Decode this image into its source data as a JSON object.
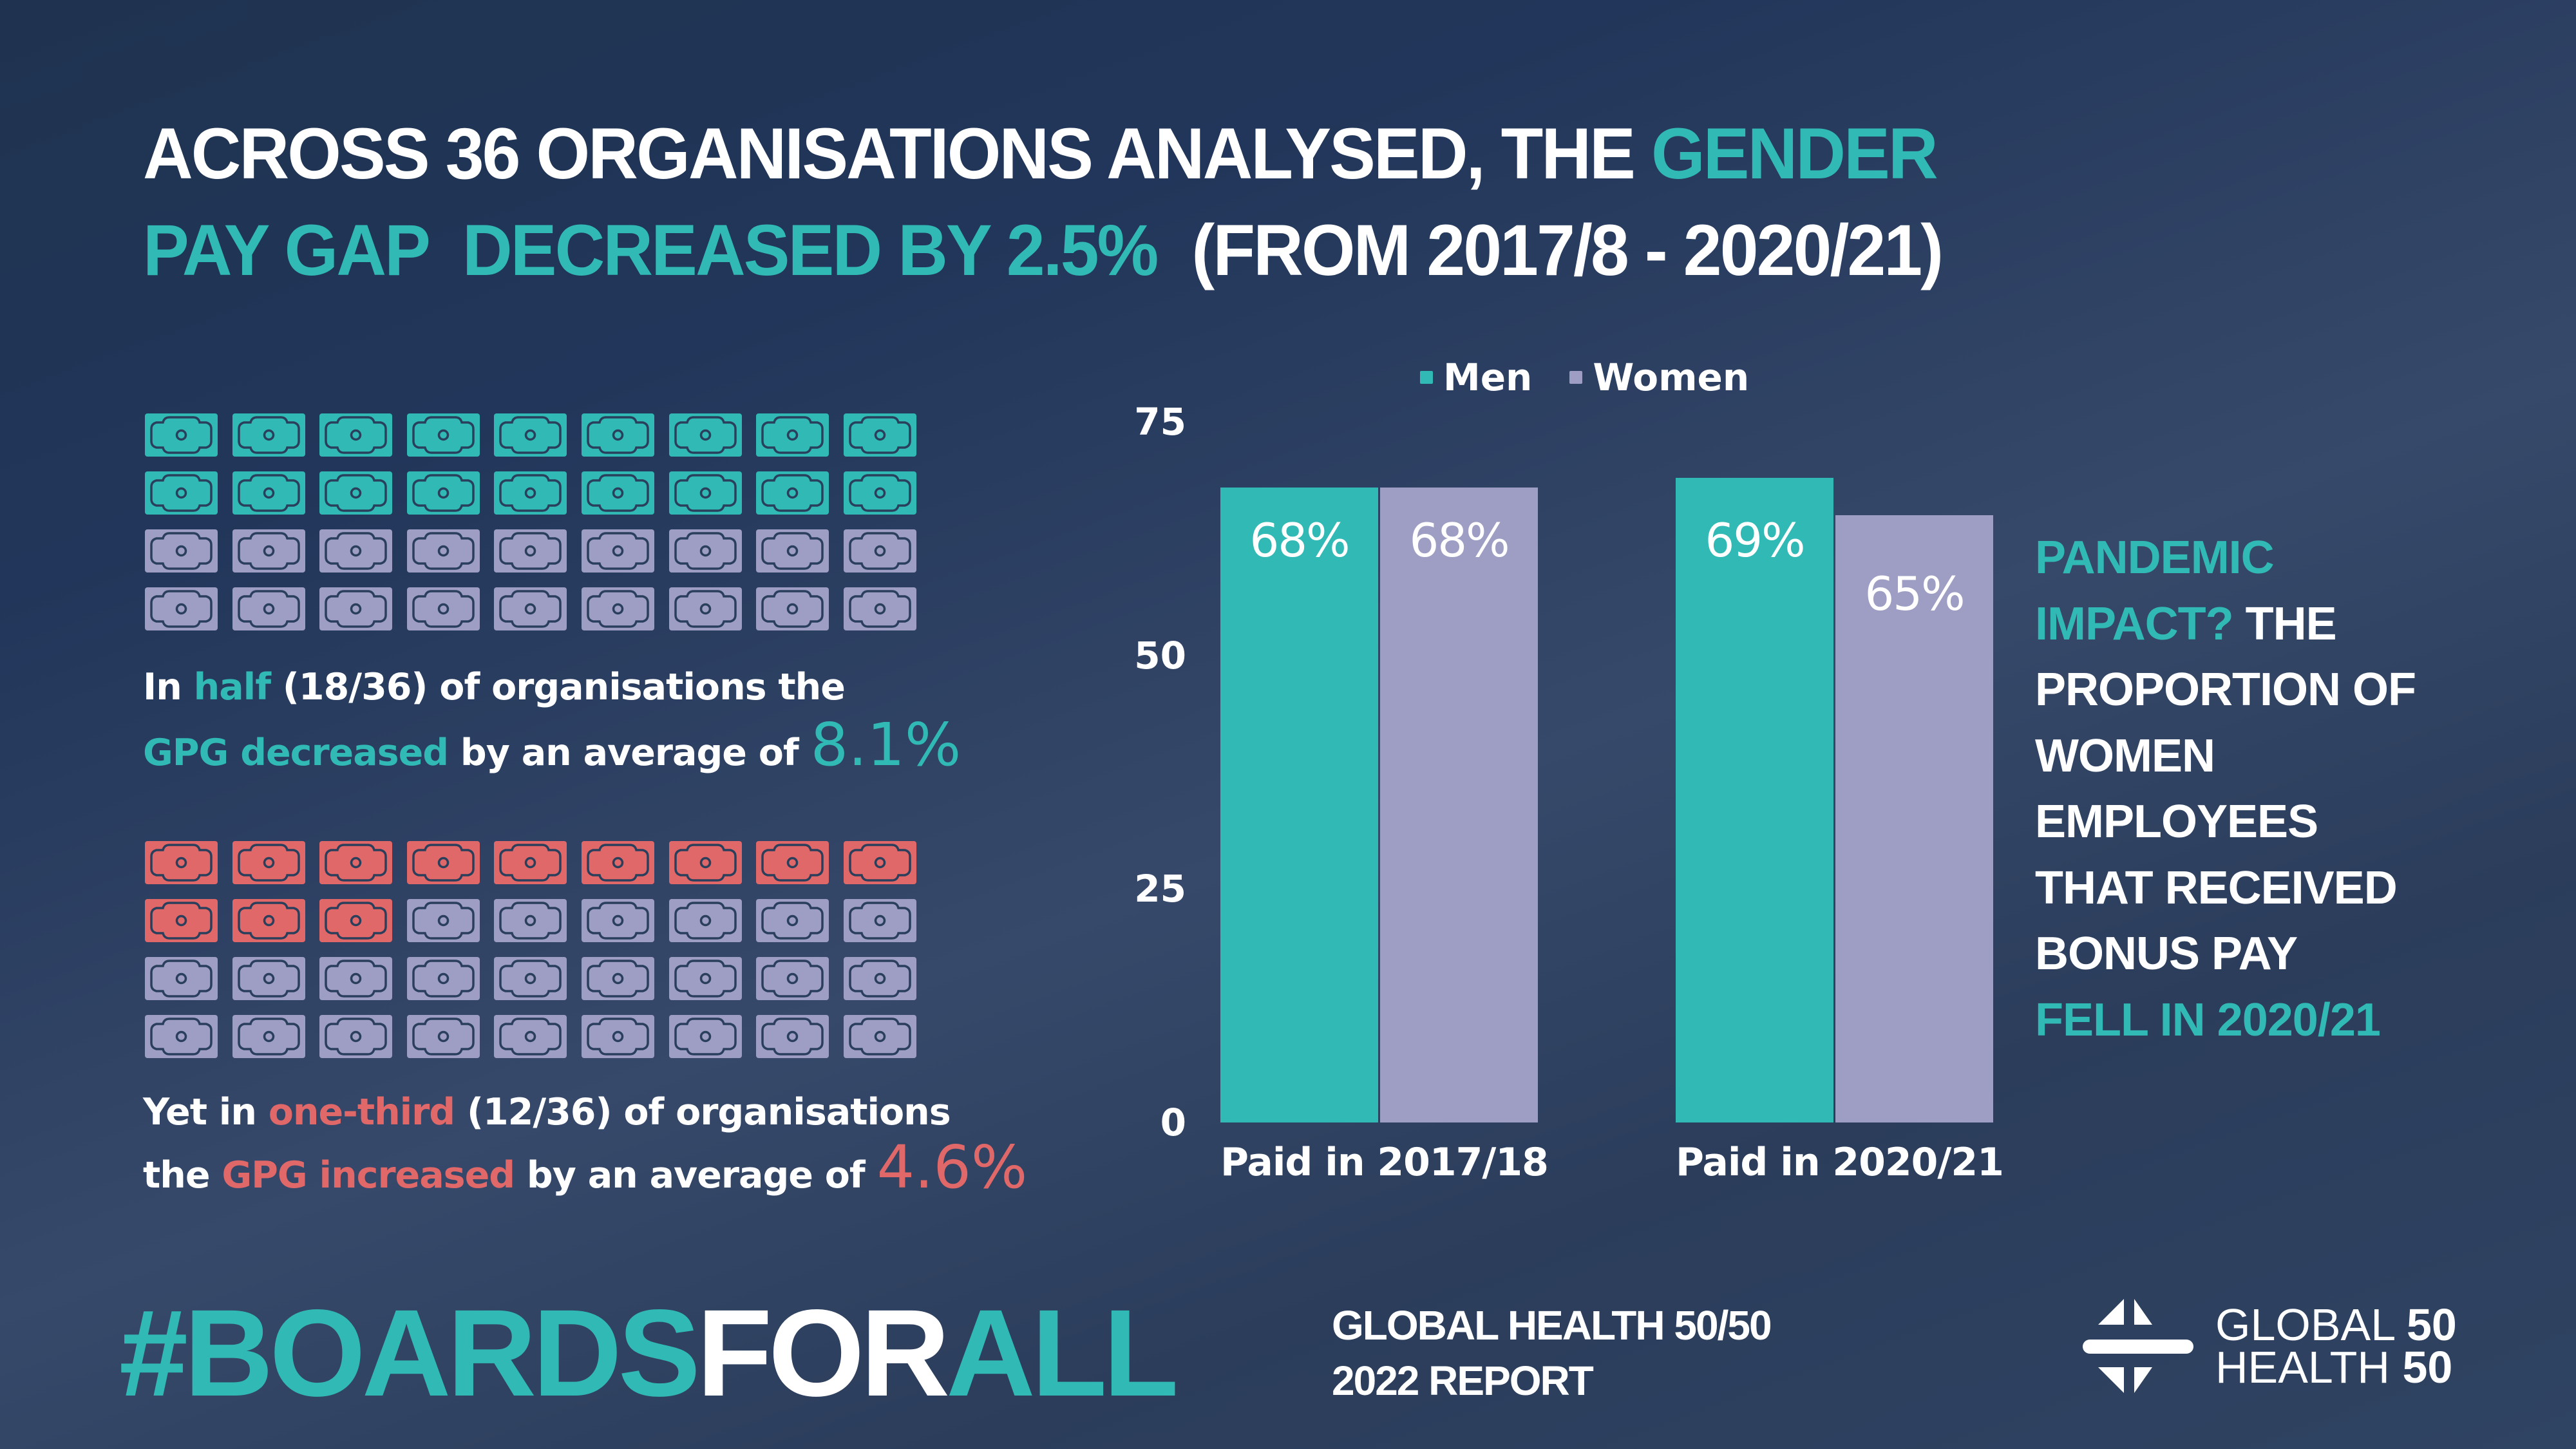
{
  "title": {
    "line1": [
      {
        "text": "ACROSS 36 ORGANISATIONS ANALYSED, THE ",
        "color": "white"
      },
      {
        "text": "GENDER",
        "color": "teal"
      }
    ],
    "line2": [
      {
        "text": "PAY GAP  DECREASED BY 2.5%",
        "color": "teal"
      },
      {
        "text": "  (FROM 2017/8 - 2020/21)",
        "color": "white"
      }
    ]
  },
  "colors": {
    "teal": "#31bab5",
    "purple": "#9e9ec4",
    "red": "#e06868",
    "background": "#1f3350",
    "icon_stroke": "#2a3f5c"
  },
  "decreased_panel": {
    "icon": "banknote-icon",
    "total": 36,
    "highlighted": 18,
    "highlight_color": "teal",
    "text_line1": [
      {
        "text": "In ",
        "color": "white"
      },
      {
        "text": "half",
        "color": "teal"
      },
      {
        "text": " (18/36) of organisations the",
        "color": "white"
      }
    ],
    "text_line2": [
      {
        "text": "GPG decreased",
        "color": "teal"
      },
      {
        "text": " by an average of ",
        "color": "white"
      }
    ],
    "big_value": "8.1%"
  },
  "increased_panel": {
    "icon": "banknote-icon",
    "total": 36,
    "highlighted": 12,
    "highlight_color": "red",
    "text_line1": [
      {
        "text": "Yet in ",
        "color": "white"
      },
      {
        "text": "one-third",
        "color": "red"
      },
      {
        "text": " (12/36) of organisations",
        "color": "white"
      }
    ],
    "text_line2": [
      {
        "text": "the ",
        "color": "white"
      },
      {
        "text": "GPG increased",
        "color": "red"
      },
      {
        "text": " by an average of ",
        "color": "white"
      }
    ],
    "big_value": "4.6%"
  },
  "chart_data": {
    "type": "bar",
    "title": "",
    "xlabel": "",
    "ylabel": "",
    "categories": [
      "Paid in 2017/18",
      "Paid in 2020/21"
    ],
    "series": [
      {
        "name": "Men",
        "color": "#31bab5",
        "values": [
          68,
          69
        ],
        "labels": [
          "68%",
          "69%"
        ]
      },
      {
        "name": "Women",
        "color": "#9e9ec4",
        "values": [
          68,
          65
        ],
        "labels": [
          "68%",
          "65%"
        ]
      }
    ],
    "ylim": [
      0,
      75
    ],
    "yticks": [
      0,
      25,
      50,
      75
    ],
    "grid": false,
    "legend_position": "top-center"
  },
  "side_note": {
    "lines": [
      [
        {
          "text": "PANDEMIC",
          "color": "teal"
        }
      ],
      [
        {
          "text": "IMPACT?",
          "color": "teal"
        },
        {
          "text": " THE",
          "color": "white"
        }
      ],
      [
        {
          "text": "PROPORTION OF",
          "color": "white"
        }
      ],
      [
        {
          "text": "WOMEN",
          "color": "white"
        }
      ],
      [
        {
          "text": "EMPLOYEES",
          "color": "white"
        }
      ],
      [
        {
          "text": "THAT RECEIVED",
          "color": "white"
        }
      ],
      [
        {
          "text": "BONUS PAY",
          "color": "white"
        }
      ],
      [
        {
          "text": "FELL IN 2020/21",
          "color": "teal"
        }
      ]
    ]
  },
  "footer": {
    "hashtag": [
      {
        "text": "#BOARDS",
        "color": "teal"
      },
      {
        "text": "FOR",
        "color": "white"
      },
      {
        "text": "ALL",
        "color": "teal"
      }
    ],
    "report_line1": "GLOBAL HEALTH 50/50",
    "report_line2": "2022 REPORT",
    "logo": {
      "icon": "global-health-5050-logo-icon",
      "line1_word": "GLOBAL",
      "line1_num": "50",
      "line2_word": "HEALTH",
      "line2_num": "50"
    }
  }
}
